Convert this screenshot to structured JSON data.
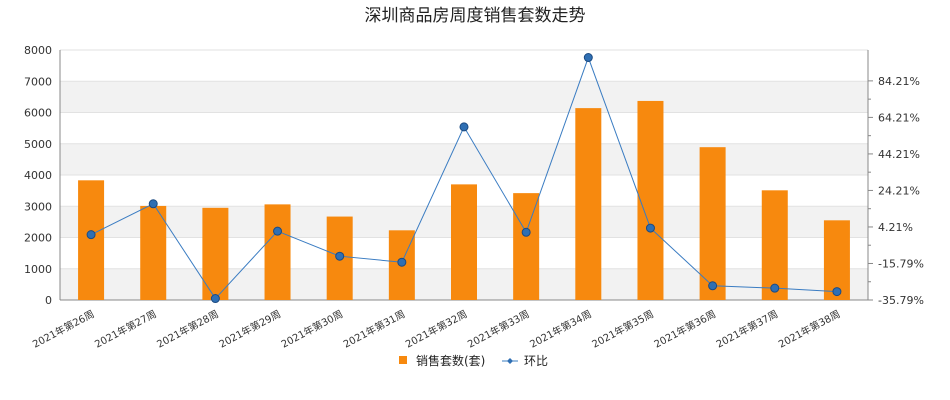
{
  "chart_data": {
    "type": "bar",
    "title": "深圳商品房周度销售套数走势",
    "categories": [
      "2021年第26周",
      "2021年第27周",
      "2021年第28周",
      "2021年第29周",
      "2021年第30周",
      "2021年第31周",
      "2021年第32周",
      "2021年第33周",
      "2021年第34周",
      "2021年第35周",
      "2021年第36周",
      "2021年第37周",
      "2021年第38周"
    ],
    "series": [
      {
        "name": "销售套数(套)",
        "type": "bar",
        "axis": "left",
        "color": "#f7890e",
        "values": [
          3830,
          3010,
          2950,
          3060,
          2670,
          2230,
          3700,
          3420,
          6140,
          6370,
          4890,
          3510,
          2550
        ]
      },
      {
        "name": "环比",
        "type": "line",
        "axis": "right",
        "color": "#3a7cc2",
        "values": [
          0.0,
          16.9,
          -35.0,
          1.9,
          -11.8,
          -15.1,
          59.0,
          1.3,
          97.0,
          3.6,
          -28.0,
          -29.3,
          -31.2
        ]
      }
    ],
    "y_left": {
      "min": 0,
      "max": 8000,
      "ticks": [
        "0",
        "1000",
        "2000",
        "3000",
        "4000",
        "5000",
        "6000",
        "7000",
        "8000"
      ]
    },
    "y_right": {
      "min": -35.79,
      "max": 101.12,
      "ticks": [
        {
          "value": -35.79,
          "label": "-35.79%"
        },
        {
          "value": -15.79,
          "label": "-15.79%"
        },
        {
          "value": 4.21,
          "label": "4.21%"
        },
        {
          "value": 24.21,
          "label": "24.21%"
        },
        {
          "value": 44.21,
          "label": "44.21%"
        },
        {
          "value": 64.21,
          "label": "64.21%"
        },
        {
          "value": 84.21,
          "label": "84.21%"
        }
      ]
    },
    "legend_position": "bottom"
  }
}
